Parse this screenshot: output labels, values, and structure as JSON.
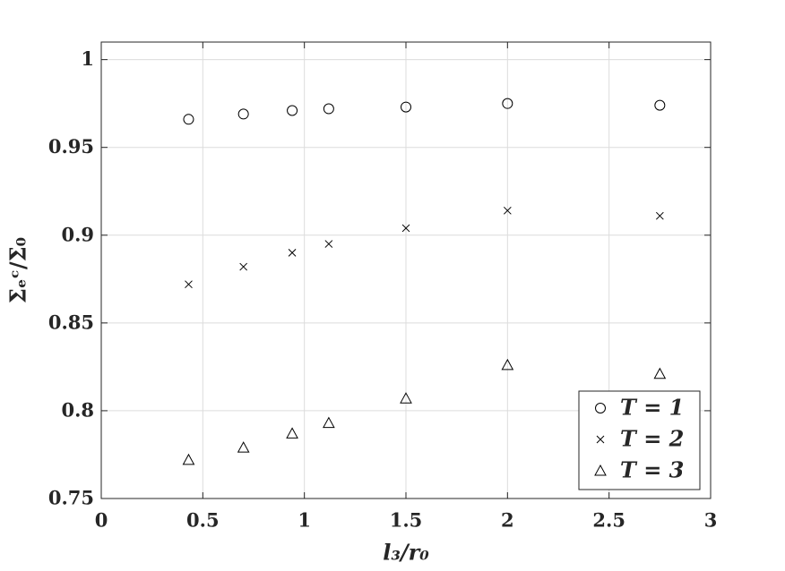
{
  "chart_data": {
    "type": "scatter",
    "x_label": "l₃/r₀",
    "y_label": "Σₑᶜ/Σ₀",
    "x": [
      0.43,
      0.7,
      0.94,
      1.12,
      1.5,
      2.0,
      2.75
    ],
    "series": [
      {
        "name": "T = 1",
        "color": "#000000",
        "marker": "circle",
        "values": [
          0.966,
          0.969,
          0.971,
          0.972,
          0.973,
          0.975,
          0.974
        ]
      },
      {
        "name": "T = 2",
        "color": "#000000",
        "marker": "x",
        "values": [
          0.872,
          0.882,
          0.89,
          0.895,
          0.904,
          0.914,
          0.911
        ]
      },
      {
        "name": "T = 3",
        "color": "#000000",
        "marker": "triangle",
        "values": [
          0.772,
          0.779,
          0.787,
          0.793,
          0.807,
          0.826,
          0.821
        ]
      }
    ],
    "xlim": [
      0,
      3
    ],
    "xticks": [
      0,
      0.5,
      1,
      1.5,
      2,
      2.5,
      3
    ],
    "ylim": [
      0.75,
      1.01
    ],
    "yticks": [
      0.75,
      0.8,
      0.85,
      0.9,
      0.95,
      1
    ],
    "grid": true,
    "legend": "lower right"
  }
}
